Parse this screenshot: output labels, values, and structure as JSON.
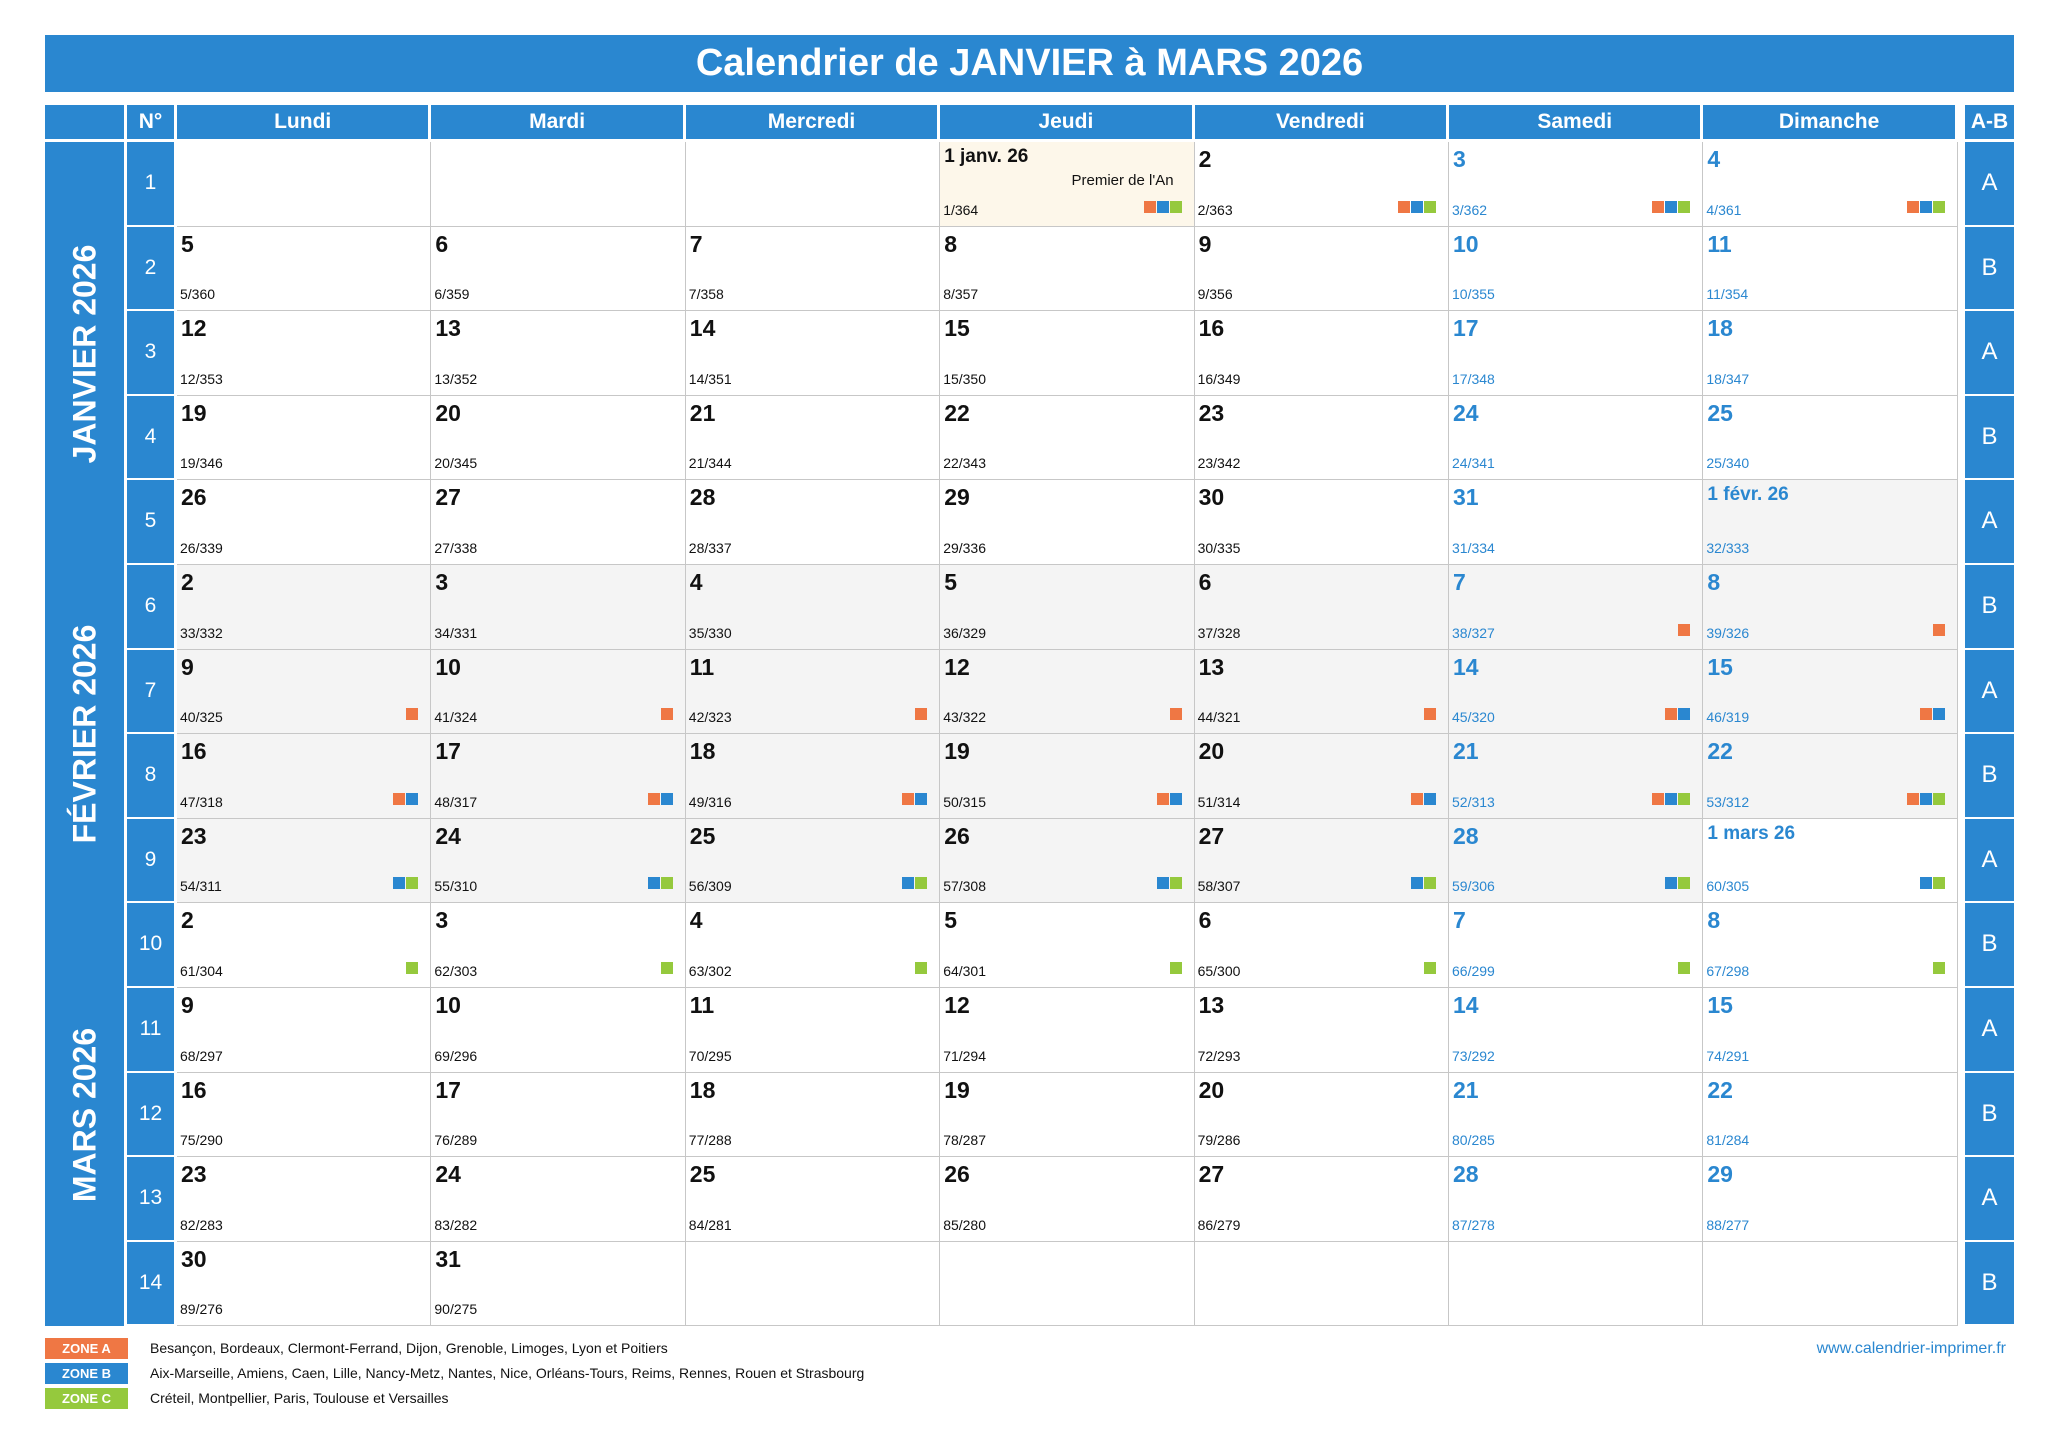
{
  "title": "Calendrier de JANVIER à MARS 2026",
  "headers": {
    "num": "N°",
    "ab": "A-B",
    "days": [
      "Lundi",
      "Mardi",
      "Mercredi",
      "Jeudi",
      "Vendredi",
      "Samedi",
      "Dimanche"
    ]
  },
  "months": [
    "JANVIER 2026",
    "FÉVRIER 2026",
    "MARS 2026"
  ],
  "zone_colors": {
    "A": "#ef7744",
    "B": "#2a87d0",
    "C": "#95c93d"
  },
  "weeks": [
    {
      "num": "1",
      "ab": "A",
      "days": [
        null,
        null,
        null,
        {
          "day": "1 janv. 26",
          "doy": "1/364",
          "zones": "ABC",
          "holiday": "Premier de l'An",
          "today": true,
          "small": true
        },
        {
          "day": "2",
          "doy": "2/363",
          "zones": "ABC"
        },
        {
          "day": "3",
          "doy": "3/362",
          "zones": "ABC"
        },
        {
          "day": "4",
          "doy": "4/361",
          "zones": "ABC"
        }
      ]
    },
    {
      "num": "2",
      "ab": "B",
      "days": [
        {
          "day": "5",
          "doy": "5/360"
        },
        {
          "day": "6",
          "doy": "6/359"
        },
        {
          "day": "7",
          "doy": "7/358"
        },
        {
          "day": "8",
          "doy": "8/357"
        },
        {
          "day": "9",
          "doy": "9/356"
        },
        {
          "day": "10",
          "doy": "10/355"
        },
        {
          "day": "11",
          "doy": "11/354"
        }
      ]
    },
    {
      "num": "3",
      "ab": "A",
      "days": [
        {
          "day": "12",
          "doy": "12/353"
        },
        {
          "day": "13",
          "doy": "13/352"
        },
        {
          "day": "14",
          "doy": "14/351"
        },
        {
          "day": "15",
          "doy": "15/350"
        },
        {
          "day": "16",
          "doy": "16/349"
        },
        {
          "day": "17",
          "doy": "17/348"
        },
        {
          "day": "18",
          "doy": "18/347"
        }
      ]
    },
    {
      "num": "4",
      "ab": "B",
      "days": [
        {
          "day": "19",
          "doy": "19/346"
        },
        {
          "day": "20",
          "doy": "20/345"
        },
        {
          "day": "21",
          "doy": "21/344"
        },
        {
          "day": "22",
          "doy": "22/343"
        },
        {
          "day": "23",
          "doy": "23/342"
        },
        {
          "day": "24",
          "doy": "24/341"
        },
        {
          "day": "25",
          "doy": "25/340"
        }
      ]
    },
    {
      "num": "5",
      "ab": "A",
      "days": [
        {
          "day": "26",
          "doy": "26/339"
        },
        {
          "day": "27",
          "doy": "27/338"
        },
        {
          "day": "28",
          "doy": "28/337"
        },
        {
          "day": "29",
          "doy": "29/336"
        },
        {
          "day": "30",
          "doy": "30/335"
        },
        {
          "day": "31",
          "doy": "31/334"
        },
        {
          "day": "1 févr. 26",
          "doy": "32/333",
          "shade": true,
          "small": true
        }
      ]
    },
    {
      "num": "6",
      "ab": "B",
      "days": [
        {
          "day": "2",
          "doy": "33/332",
          "shade": true
        },
        {
          "day": "3",
          "doy": "34/331",
          "shade": true
        },
        {
          "day": "4",
          "doy": "35/330",
          "shade": true
        },
        {
          "day": "5",
          "doy": "36/329",
          "shade": true
        },
        {
          "day": "6",
          "doy": "37/328",
          "shade": true
        },
        {
          "day": "7",
          "doy": "38/327",
          "shade": true,
          "zones": "A"
        },
        {
          "day": "8",
          "doy": "39/326",
          "shade": true,
          "zones": "A"
        }
      ]
    },
    {
      "num": "7",
      "ab": "A",
      "days": [
        {
          "day": "9",
          "doy": "40/325",
          "shade": true,
          "zones": "A"
        },
        {
          "day": "10",
          "doy": "41/324",
          "shade": true,
          "zones": "A"
        },
        {
          "day": "11",
          "doy": "42/323",
          "shade": true,
          "zones": "A"
        },
        {
          "day": "12",
          "doy": "43/322",
          "shade": true,
          "zones": "A"
        },
        {
          "day": "13",
          "doy": "44/321",
          "shade": true,
          "zones": "A"
        },
        {
          "day": "14",
          "doy": "45/320",
          "shade": true,
          "zones": "AB"
        },
        {
          "day": "15",
          "doy": "46/319",
          "shade": true,
          "zones": "AB"
        }
      ]
    },
    {
      "num": "8",
      "ab": "B",
      "days": [
        {
          "day": "16",
          "doy": "47/318",
          "shade": true,
          "zones": "AB"
        },
        {
          "day": "17",
          "doy": "48/317",
          "shade": true,
          "zones": "AB"
        },
        {
          "day": "18",
          "doy": "49/316",
          "shade": true,
          "zones": "AB"
        },
        {
          "day": "19",
          "doy": "50/315",
          "shade": true,
          "zones": "AB"
        },
        {
          "day": "20",
          "doy": "51/314",
          "shade": true,
          "zones": "AB"
        },
        {
          "day": "21",
          "doy": "52/313",
          "shade": true,
          "zones": "ABC"
        },
        {
          "day": "22",
          "doy": "53/312",
          "shade": true,
          "zones": "ABC"
        }
      ]
    },
    {
      "num": "9",
      "ab": "A",
      "days": [
        {
          "day": "23",
          "doy": "54/311",
          "shade": true,
          "zones": "BC"
        },
        {
          "day": "24",
          "doy": "55/310",
          "shade": true,
          "zones": "BC"
        },
        {
          "day": "25",
          "doy": "56/309",
          "shade": true,
          "zones": "BC"
        },
        {
          "day": "26",
          "doy": "57/308",
          "shade": true,
          "zones": "BC"
        },
        {
          "day": "27",
          "doy": "58/307",
          "shade": true,
          "zones": "BC"
        },
        {
          "day": "28",
          "doy": "59/306",
          "shade": true,
          "zones": "BC"
        },
        {
          "day": "1 mars 26",
          "doy": "60/305",
          "zones": "BC",
          "small": true
        }
      ]
    },
    {
      "num": "10",
      "ab": "B",
      "days": [
        {
          "day": "2",
          "doy": "61/304",
          "zones": "C"
        },
        {
          "day": "3",
          "doy": "62/303",
          "zones": "C"
        },
        {
          "day": "4",
          "doy": "63/302",
          "zones": "C"
        },
        {
          "day": "5",
          "doy": "64/301",
          "zones": "C"
        },
        {
          "day": "6",
          "doy": "65/300",
          "zones": "C"
        },
        {
          "day": "7",
          "doy": "66/299",
          "zones": "C"
        },
        {
          "day": "8",
          "doy": "67/298",
          "zones": "C"
        }
      ]
    },
    {
      "num": "11",
      "ab": "A",
      "days": [
        {
          "day": "9",
          "doy": "68/297"
        },
        {
          "day": "10",
          "doy": "69/296"
        },
        {
          "day": "11",
          "doy": "70/295"
        },
        {
          "day": "12",
          "doy": "71/294"
        },
        {
          "day": "13",
          "doy": "72/293"
        },
        {
          "day": "14",
          "doy": "73/292"
        },
        {
          "day": "15",
          "doy": "74/291"
        }
      ]
    },
    {
      "num": "12",
      "ab": "B",
      "days": [
        {
          "day": "16",
          "doy": "75/290"
        },
        {
          "day": "17",
          "doy": "76/289"
        },
        {
          "day": "18",
          "doy": "77/288"
        },
        {
          "day": "19",
          "doy": "78/287"
        },
        {
          "day": "20",
          "doy": "79/286"
        },
        {
          "day": "21",
          "doy": "80/285"
        },
        {
          "day": "22",
          "doy": "81/284"
        }
      ]
    },
    {
      "num": "13",
      "ab": "A",
      "days": [
        {
          "day": "23",
          "doy": "82/283"
        },
        {
          "day": "24",
          "doy": "83/282"
        },
        {
          "day": "25",
          "doy": "84/281"
        },
        {
          "day": "26",
          "doy": "85/280"
        },
        {
          "day": "27",
          "doy": "86/279"
        },
        {
          "day": "28",
          "doy": "87/278"
        },
        {
          "day": "29",
          "doy": "88/277"
        }
      ]
    },
    {
      "num": "14",
      "ab": "B",
      "days": [
        {
          "day": "30",
          "doy": "89/276"
        },
        {
          "day": "31",
          "doy": "90/275"
        },
        null,
        null,
        null,
        null,
        null
      ]
    }
  ],
  "legend": [
    {
      "label": "ZONE A",
      "zone": "A",
      "text": "Besançon, Bordeaux, Clermont-Ferrand, Dijon, Grenoble, Limoges, Lyon et Poitiers"
    },
    {
      "label": "ZONE B",
      "zone": "B",
      "text": "Aix-Marseille, Amiens, Caen, Lille, Nancy-Metz, Nantes, Nice, Orléans-Tours, Reims, Rennes, Rouen et Strasbourg"
    },
    {
      "label": "ZONE C",
      "zone": "C",
      "text": "Créteil, Montpellier, Paris, Toulouse et Versailles"
    }
  ],
  "website": "www.calendrier-imprimer.fr"
}
